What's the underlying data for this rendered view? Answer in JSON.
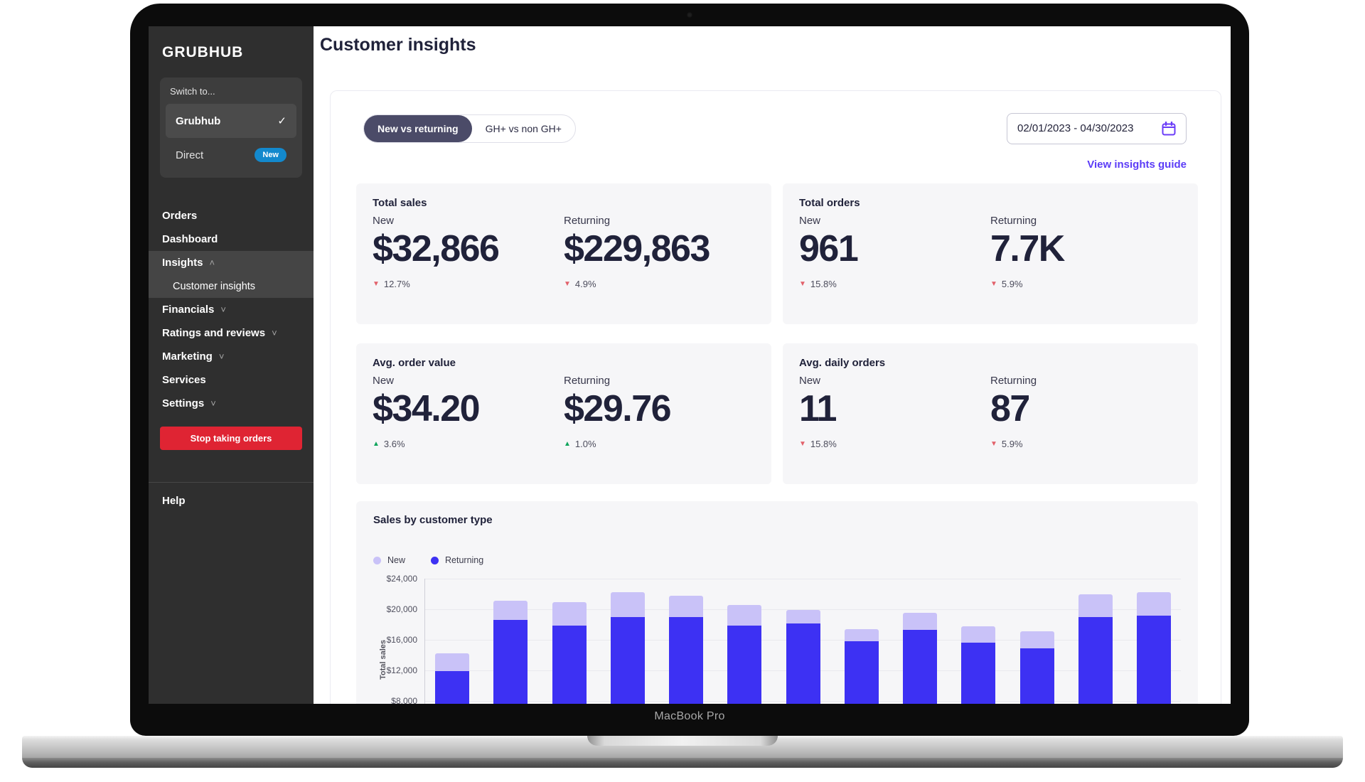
{
  "device": {
    "label": "MacBook Pro"
  },
  "sidebar": {
    "logo": "GRUBHUB",
    "switcher": {
      "label": "Switch to...",
      "selected_option": "Grubhub",
      "check": "✓",
      "secondary_option": "Direct",
      "badge": "New"
    },
    "items": [
      {
        "label": "Orders"
      },
      {
        "label": "Dashboard"
      },
      {
        "label": "Insights",
        "caret": "˄"
      },
      {
        "label": "Customer insights"
      },
      {
        "label": "Financials",
        "caret": "˅"
      },
      {
        "label": "Ratings and reviews",
        "caret": "˅"
      },
      {
        "label": "Marketing",
        "caret": "˅"
      },
      {
        "label": "Services"
      },
      {
        "label": "Settings",
        "caret": "˅"
      }
    ],
    "stop_button": "Stop taking orders",
    "help": "Help"
  },
  "header": {
    "title": "Customer insights"
  },
  "toolbar": {
    "tabs": [
      {
        "label": "New vs returning",
        "selected": true
      },
      {
        "label": "GH+ vs non GH+",
        "selected": false
      }
    ],
    "date_range": "02/01/2023 - 04/30/2023",
    "guide_link": "View insights guide"
  },
  "metrics": [
    {
      "title": "Total sales",
      "new": {
        "label": "New",
        "value": "$32,866",
        "arrow": "▼",
        "delta": "12.7%"
      },
      "returning": {
        "label": "Returning",
        "value": "$229,863",
        "arrow": "▼",
        "delta": "4.9%"
      }
    },
    {
      "title": "Total orders",
      "new": {
        "label": "New",
        "value": "961",
        "arrow": "▼",
        "delta": "15.8%"
      },
      "returning": {
        "label": "Returning",
        "value": "7.7K",
        "arrow": "▼",
        "delta": "5.9%"
      }
    },
    {
      "title": "Avg. order value",
      "new": {
        "label": "New",
        "value": "$34.20",
        "arrow": "▲",
        "delta": "3.6%"
      },
      "returning": {
        "label": "Returning",
        "value": "$29.76",
        "arrow": "▲",
        "delta": "1.0%"
      }
    },
    {
      "title": "Avg. daily orders",
      "new": {
        "label": "New",
        "value": "11",
        "arrow": "▼",
        "delta": "15.8%"
      },
      "returning": {
        "label": "Returning",
        "value": "87",
        "arrow": "▼",
        "delta": "5.9%"
      }
    }
  ],
  "chart_data": {
    "type": "bar",
    "stacked": true,
    "title": "Sales by customer type",
    "ylabel": "Total sales",
    "legend": [
      {
        "name": "New",
        "color": "#c9c2f8"
      },
      {
        "name": "Returning",
        "color": "#3d31f3"
      }
    ],
    "y_ticks": [
      "$24,000",
      "$20,000",
      "$16,000",
      "$12,000",
      "$8,000"
    ],
    "y_tick_values": [
      24000,
      20000,
      16000,
      12000,
      8000
    ],
    "visible_y_range": [
      8000,
      24000
    ],
    "grid": true,
    "legend_position": "top-left",
    "series": [
      {
        "name": "Returning",
        "values": [
          11900,
          18600,
          17900,
          19000,
          19000,
          17900,
          18100,
          15800,
          17300,
          15600,
          14900,
          19000,
          19200
        ]
      },
      {
        "name": "New",
        "values": [
          2300,
          2500,
          3000,
          3200,
          2800,
          2700,
          1800,
          1600,
          2200,
          2200,
          2200,
          3000,
          3000
        ]
      }
    ]
  },
  "colors": {
    "accent_purple": "#5b3cf7",
    "bar_returning": "#3d31f3",
    "bar_new": "#c9c2f8",
    "delta_down": "#e2606a",
    "delta_up": "#10a45c",
    "badge_blue": "#1389cd",
    "danger_red": "#df2433",
    "pill_selected": "#4b4b68"
  }
}
